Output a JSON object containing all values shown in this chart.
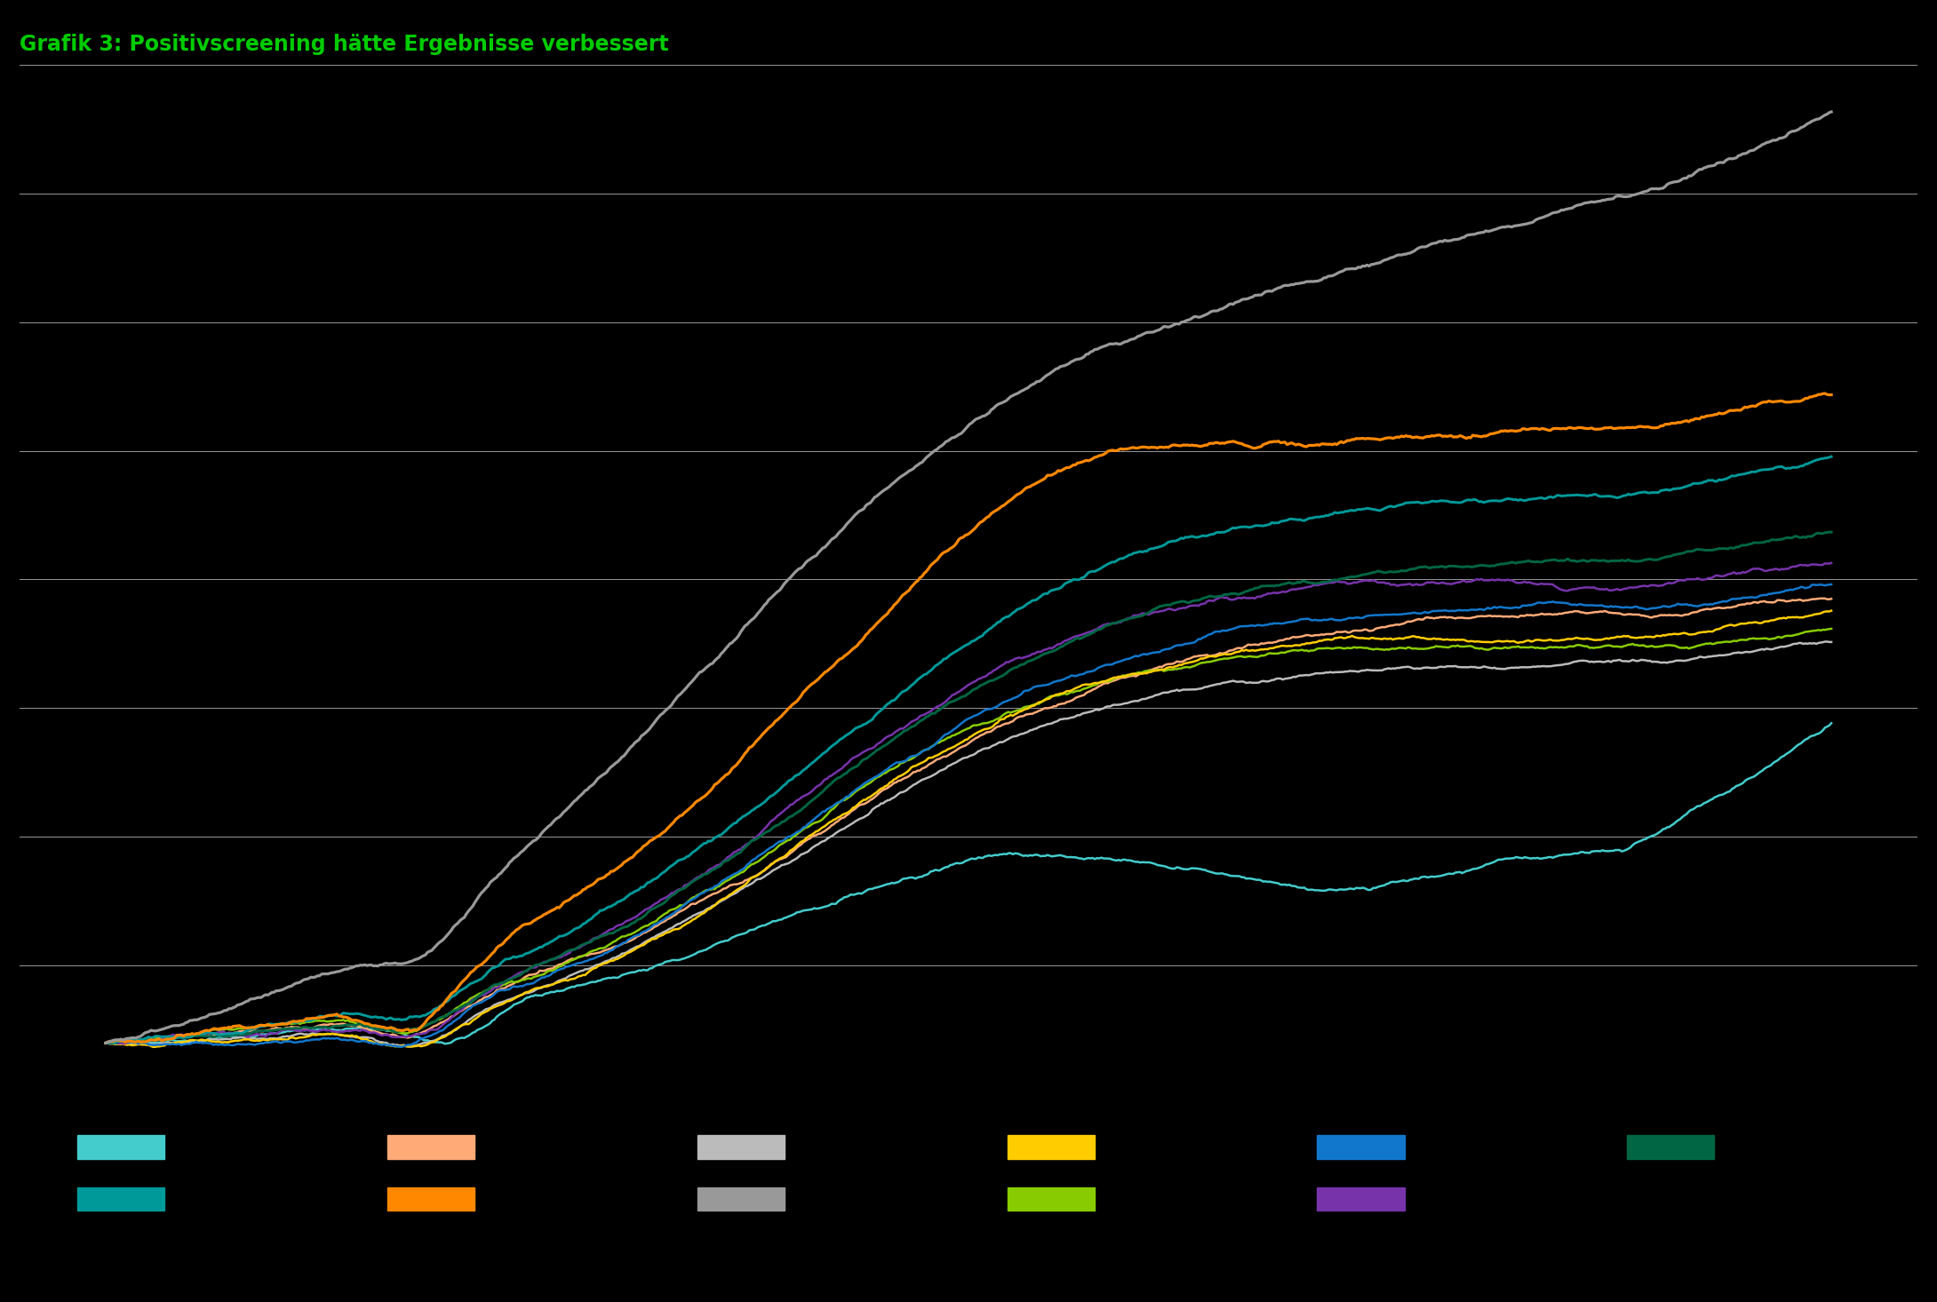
{
  "title": "Grafik 3: Positivscreening hätte Ergebnisse verbessert",
  "title_color": "#00cc00",
  "background_color": "#000000",
  "grid_color": "#ffffff",
  "n_points": 800,
  "seed": 42,
  "colors": {
    "gray_top": "#999999",
    "orange": "#ff8800",
    "teal": "#009999",
    "dark_green": "#006644",
    "purple": "#7733aa",
    "blue": "#1177cc",
    "yellow": "#ffcc00",
    "lime": "#88cc00",
    "light_orange": "#ffaa77",
    "light_gray": "#bbbbbb",
    "light_cyan": "#44cccc"
  },
  "legend_row1": [
    "#44cccc",
    "#ffaa77",
    "#bbbbbb",
    "#ffcc00",
    "#1177cc",
    "#006644"
  ],
  "legend_row2": [
    "#009999",
    "#ff8800",
    "#999999",
    "#88cc00",
    "#7733aa"
  ]
}
